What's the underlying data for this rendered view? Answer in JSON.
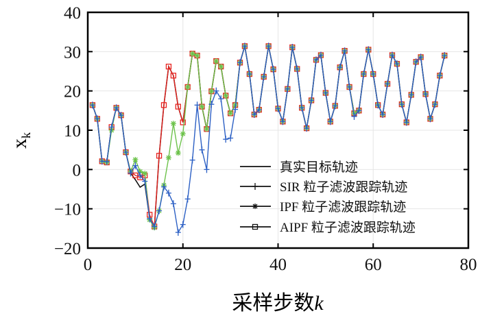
{
  "chart_data": {
    "type": "line",
    "title": "",
    "xlabel": "采样步数",
    "xlabel_var": "k",
    "ylabel": "x",
    "ylabel_sub": "k",
    "xlim": [
      0,
      80
    ],
    "ylim": [
      -20,
      40
    ],
    "xticks": [
      "0",
      "20",
      "40",
      "60",
      "80"
    ],
    "yticks": [
      "40",
      "30",
      "20",
      "10",
      "0",
      "−10",
      "−20"
    ],
    "grid": true,
    "legend_position": "bottom-right",
    "colors": {
      "true": "#111111",
      "sir": "#2b5fc4",
      "ipf": "#6cc24a",
      "aipf": "#e8231f"
    },
    "x_start": 1,
    "series": [
      {
        "name": "真实目标轨迹",
        "marker": "none",
        "values": [
          16.4,
          12.9,
          2.1,
          1.8,
          10.8,
          15.7,
          13.8,
          4.4,
          -0.9,
          -2.6,
          -4.5,
          -3.7,
          -12.4,
          -14.8,
          3.5,
          16.4,
          26.2,
          23.9,
          16,
          12,
          21,
          29.5,
          29,
          16,
          10.3,
          19.9,
          27.6,
          26.2,
          18.8,
          14.3,
          16.4,
          27.2,
          31.4,
          24.3,
          14,
          15.2,
          23.6,
          31.4,
          25.5,
          15.5,
          12.2,
          20.5,
          31.1,
          25.6,
          15.7,
          10.5,
          17.6,
          27.9,
          29.1,
          19.5,
          12.2,
          16.2,
          26,
          30.2,
          21,
          14.3,
          15,
          24.3,
          30.5,
          24.3,
          16.4,
          14,
          21.8,
          29.1,
          26.9,
          16.6,
          12,
          19,
          27.4,
          28.6,
          19.2,
          12.9,
          16.6,
          23.9,
          29
        ]
      },
      {
        "name": "SIR 粒子滤波跟踪轨迹",
        "marker": "plus",
        "values": [
          16.4,
          12.9,
          2.1,
          2.0,
          10.8,
          15.7,
          13.8,
          4.4,
          -0.9,
          1.0,
          -1.5,
          -3.0,
          -12.5,
          -14.5,
          -10.5,
          -4.4,
          -6,
          -8.7,
          -16,
          -14,
          -7.5,
          2.4,
          16.4,
          5,
          0,
          16.6,
          20,
          18,
          7.7,
          8,
          15.3,
          27.2,
          31.4,
          24.3,
          14,
          15.2,
          23.6,
          31.4,
          25.5,
          15.5,
          12.2,
          20.5,
          31.1,
          25.6,
          15.7,
          10.5,
          17.6,
          27.9,
          29.1,
          19.5,
          12.2,
          16.2,
          26,
          30.2,
          21,
          13.5,
          15,
          24.3,
          30.5,
          24.3,
          16.4,
          14,
          21.8,
          29.1,
          26.9,
          16.6,
          12,
          19,
          27.4,
          28.6,
          19.2,
          12.9,
          16.6,
          23.9,
          29
        ]
      },
      {
        "name": "IPF 粒子滤波跟踪轨迹",
        "marker": "asterisk",
        "values": [
          16.4,
          12.9,
          2.1,
          1.8,
          10.0,
          15.7,
          13.8,
          4.4,
          -0.5,
          2.5,
          -0.5,
          -1.0,
          -12.8,
          -14.8,
          -10.5,
          -4,
          3,
          11.7,
          4.2,
          9.1,
          21,
          29.5,
          29,
          16,
          10.3,
          19.9,
          27.6,
          26.2,
          18.8,
          14.3,
          16.4,
          27.2,
          31.4,
          24.3,
          14,
          15.2,
          23.6,
          31.4,
          25.5,
          15.5,
          12.2,
          20.5,
          31.1,
          25.6,
          15.7,
          10.5,
          17.6,
          27.9,
          29.1,
          19.5,
          12.2,
          16.2,
          26,
          30.2,
          21,
          14.3,
          15,
          24.3,
          30.5,
          24.3,
          16.4,
          14,
          21.8,
          29.1,
          26.9,
          16.6,
          12,
          19,
          27.4,
          28.6,
          19.2,
          12.9,
          16.6,
          23.9,
          29
        ]
      },
      {
        "name": "AIPF 粒子滤波跟踪轨迹",
        "marker": "square",
        "values": [
          16.4,
          12.9,
          2.1,
          1.8,
          10.8,
          15.7,
          13.8,
          4.4,
          -0.5,
          -1.5,
          -2.0,
          -1.5,
          -11.5,
          -14.5,
          3.5,
          16.4,
          26.2,
          23.9,
          16,
          12,
          21,
          29.5,
          29,
          16,
          10.3,
          19.9,
          27.6,
          26.2,
          18.8,
          14.3,
          16.4,
          27.2,
          31.4,
          24.3,
          14,
          15.2,
          23.6,
          31.4,
          25.5,
          15.5,
          12.2,
          20.5,
          31.1,
          25.6,
          15.7,
          10.5,
          17.6,
          27.9,
          29.1,
          19.5,
          12.2,
          16.2,
          26,
          30.2,
          21,
          14.3,
          15,
          24.3,
          30.5,
          24.3,
          16.4,
          14,
          21.8,
          29.1,
          26.9,
          16.6,
          12,
          19,
          27.4,
          28.6,
          19.2,
          12.9,
          16.6,
          23.9,
          29
        ]
      }
    ]
  }
}
